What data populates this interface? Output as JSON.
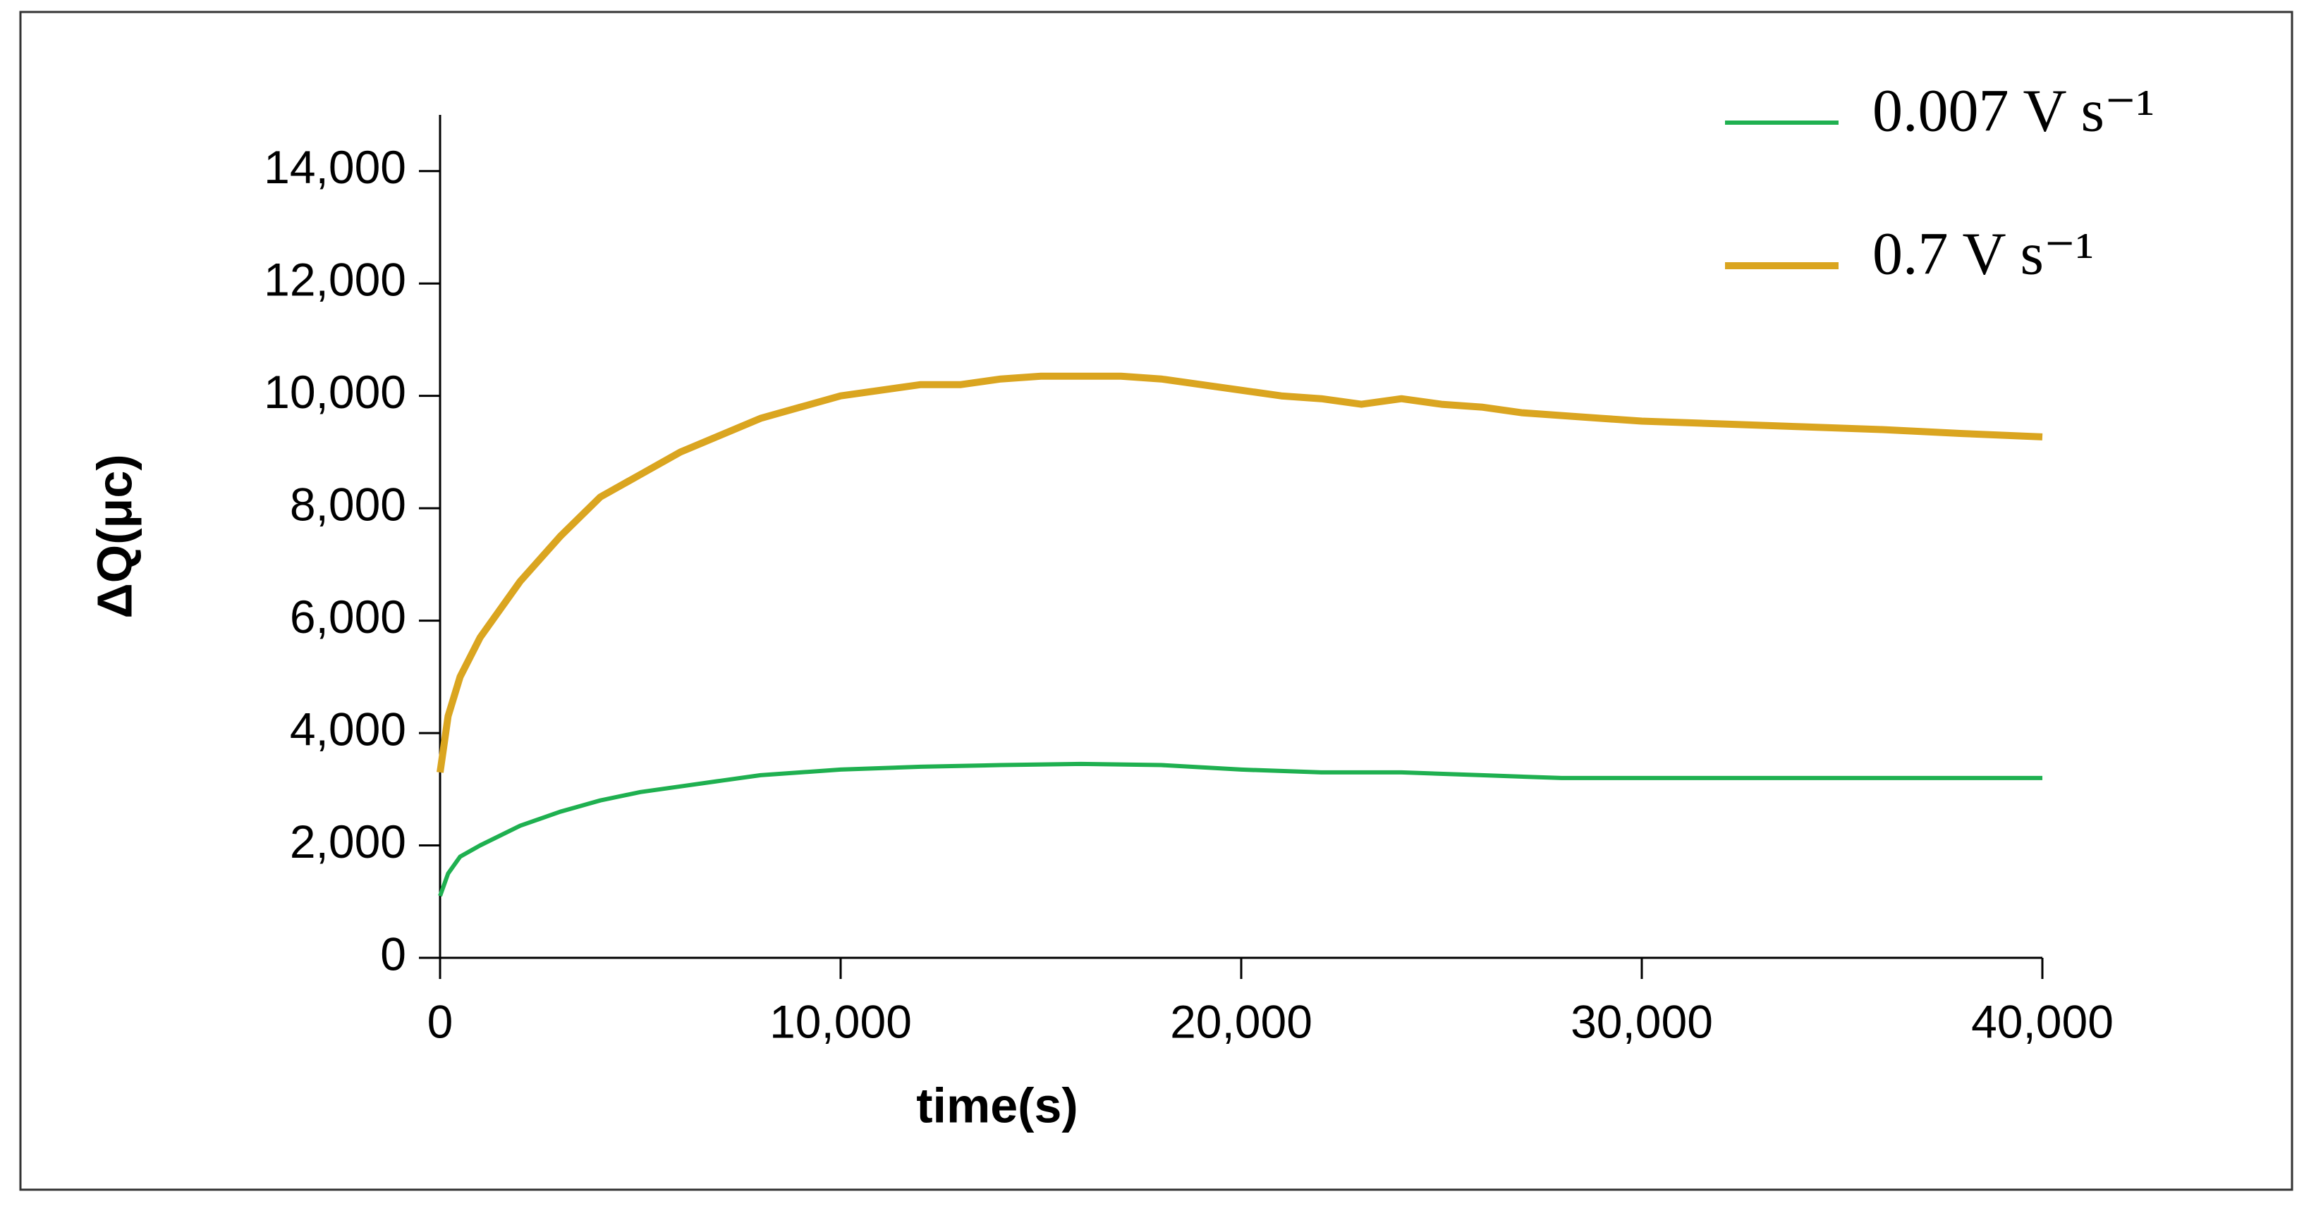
{
  "chart_data": {
    "type": "line",
    "x_label": "time(s)",
    "y_label": "ΔQ(μc)",
    "xlim": [
      0,
      40000
    ],
    "ylim": [
      0,
      15000
    ],
    "xticks": [
      0,
      {
        "value": 10000,
        "label": "10,000"
      },
      {
        "value": 20000,
        "label": "20,000"
      },
      {
        "value": 30000,
        "label": "30,000"
      },
      {
        "value": 40000,
        "label": "40,000"
      }
    ],
    "yticks": [
      0,
      {
        "value": 2000,
        "label": "2,000"
      },
      {
        "value": 4000,
        "label": "4,000"
      },
      {
        "value": 6000,
        "label": "6,000"
      },
      {
        "value": 8000,
        "label": "8,000"
      },
      {
        "value": 10000,
        "label": "10,000"
      },
      {
        "value": 12000,
        "label": "12,000"
      },
      {
        "value": 14000,
        "label": "14,000"
      }
    ],
    "legend": "top-right",
    "series": [
      {
        "name": "0.007 V s⁻¹",
        "color": "#1fb050",
        "x": [
          0,
          200,
          500,
          1000,
          2000,
          3000,
          4000,
          5000,
          6000,
          7000,
          8000,
          9000,
          10000,
          12000,
          14000,
          16000,
          18000,
          20000,
          22000,
          24000,
          26000,
          28000,
          30000,
          35000,
          40000
        ],
        "values": [
          1100,
          1500,
          1800,
          2000,
          2350,
          2600,
          2800,
          2950,
          3050,
          3150,
          3250,
          3300,
          3350,
          3400,
          3430,
          3450,
          3430,
          3350,
          3300,
          3300,
          3250,
          3200,
          3200,
          3200,
          3200
        ]
      },
      {
        "name": "0.7 V s⁻¹",
        "color": "#daa520",
        "x": [
          0,
          200,
          500,
          1000,
          2000,
          3000,
          4000,
          5000,
          6000,
          7000,
          8000,
          9000,
          10000,
          11000,
          12000,
          13000,
          14000,
          15000,
          16000,
          17000,
          18000,
          19000,
          20000,
          21000,
          22000,
          23000,
          24000,
          25000,
          26000,
          27000,
          28000,
          29000,
          30000,
          32000,
          34000,
          36000,
          38000,
          40000
        ],
        "values": [
          3300,
          4300,
          5000,
          5700,
          6700,
          7500,
          8200,
          8600,
          9000,
          9300,
          9600,
          9800,
          10000,
          10100,
          10200,
          10200,
          10300,
          10350,
          10350,
          10350,
          10300,
          10200,
          10100,
          10000,
          9950,
          9850,
          9950,
          9850,
          9800,
          9700,
          9650,
          9600,
          9550,
          9500,
          9450,
          9400,
          9330,
          9270
        ]
      }
    ]
  }
}
